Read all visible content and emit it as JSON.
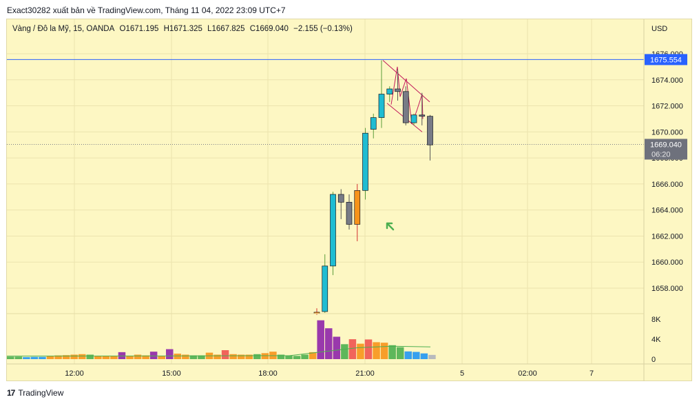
{
  "header": {
    "publish_line": "Exact30282 xuất bản về TradingView.com, Tháng 11 04, 2022 23:09 UTC+7"
  },
  "legend": {
    "symbol": "Vàng / Đô la Mỹ, 15, OANDA",
    "open": "O1671.195",
    "high": "H1671.325",
    "low": "L1667.825",
    "close": "C1669.040",
    "change": "−2.155 (−0.13%)"
  },
  "price_axis": {
    "currency": "USD",
    "ticks": [
      "1676.000",
      "1674.000",
      "1672.000",
      "1670.000",
      "1668.000",
      "1666.000",
      "1664.000",
      "1662.000",
      "1660.000",
      "1658.000"
    ]
  },
  "labels": {
    "horizontal_line_price": "1675.554",
    "last_price": "1669.040",
    "countdown": "06:20"
  },
  "volume_axis": {
    "ticks": [
      "8K",
      "4K",
      "0"
    ]
  },
  "time_axis": {
    "ticks": [
      "12:00",
      "15:00",
      "18:00",
      "21:00",
      "5",
      "02:00",
      "7"
    ]
  },
  "footer": {
    "brand": "TradingView",
    "logo_text": "17"
  },
  "colors": {
    "background": "#fdf7c3",
    "up_candle": "#1fbcd2",
    "down_candle": "#787b86",
    "orange_candle": "#f7931a",
    "horizontal_line": "#2962ff",
    "trendline": "#c2185b",
    "arrow": "#4caf50"
  },
  "chart_data": {
    "type": "candlestick",
    "symbol": "Vàng / Đô la Mỹ, 15, OANDA",
    "ylim": [
      1656.8,
      1677
    ],
    "horizontal_line": 1675.554,
    "last_price": 1669.04,
    "x_labels": [
      "12:00",
      "15:00",
      "18:00",
      "21:00",
      "5",
      "02:00",
      "7"
    ],
    "candles": [
      {
        "time": "19:30",
        "o": 1656.05,
        "h": 1656.45,
        "l": 1655.95,
        "c": 1656.15,
        "color": "orange"
      },
      {
        "time": "19:45",
        "o": 1656.2,
        "h": 1660.6,
        "l": 1656.1,
        "c": 1659.7,
        "color": "up"
      },
      {
        "time": "20:00",
        "o": 1659.7,
        "h": 1665.4,
        "l": 1659.0,
        "c": 1665.2,
        "color": "up"
      },
      {
        "time": "20:15",
        "o": 1665.2,
        "h": 1665.6,
        "l": 1663.3,
        "c": 1664.6,
        "color": "down"
      },
      {
        "time": "20:30",
        "o": 1664.6,
        "h": 1665.2,
        "l": 1662.5,
        "c": 1662.9,
        "color": "down"
      },
      {
        "time": "20:45",
        "o": 1662.9,
        "h": 1666.0,
        "l": 1661.6,
        "c": 1665.5,
        "color": "orange"
      },
      {
        "time": "21:00",
        "o": 1665.5,
        "h": 1670.3,
        "l": 1664.8,
        "c": 1669.9,
        "color": "up"
      },
      {
        "time": "21:15",
        "o": 1670.2,
        "h": 1671.4,
        "l": 1669.5,
        "c": 1671.1,
        "color": "up"
      },
      {
        "time": "21:30",
        "o": 1671.1,
        "h": 1675.5,
        "l": 1670.3,
        "c": 1672.9,
        "color": "up"
      },
      {
        "time": "21:45",
        "o": 1672.9,
        "h": 1673.5,
        "l": 1672.3,
        "c": 1673.3,
        "color": "up"
      },
      {
        "time": "22:00",
        "o": 1673.3,
        "h": 1674.8,
        "l": 1672.4,
        "c": 1673.1,
        "color": "down"
      },
      {
        "time": "22:15",
        "o": 1673.1,
        "h": 1673.5,
        "l": 1670.5,
        "c": 1670.7,
        "color": "down"
      },
      {
        "time": "22:30",
        "o": 1670.7,
        "h": 1671.4,
        "l": 1670.5,
        "c": 1671.3,
        "color": "up"
      },
      {
        "time": "22:45",
        "o": 1671.3,
        "h": 1673.0,
        "l": 1670.5,
        "c": 1671.2,
        "color": "down"
      },
      {
        "time": "23:00",
        "o": 1671.2,
        "h": 1671.3,
        "l": 1667.8,
        "c": 1669.0,
        "color": "down"
      }
    ],
    "volume": {
      "ylim": [
        0,
        9000
      ],
      "bars": [
        {
          "v": 500,
          "color": "green"
        },
        {
          "v": 500,
          "color": "green"
        },
        {
          "v": 400,
          "color": "blue"
        },
        {
          "v": 450,
          "color": "blue"
        },
        {
          "v": 450,
          "color": "blue"
        },
        {
          "v": 650,
          "color": "orange"
        },
        {
          "v": 750,
          "color": "orange"
        },
        {
          "v": 800,
          "color": "orange"
        },
        {
          "v": 900,
          "color": "orange"
        },
        {
          "v": 1000,
          "color": "orange"
        },
        {
          "v": 900,
          "color": "green"
        },
        {
          "v": 650,
          "color": "orange"
        },
        {
          "v": 650,
          "color": "orange"
        },
        {
          "v": 650,
          "color": "orange"
        },
        {
          "v": 1400,
          "color": "purple"
        },
        {
          "v": 650,
          "color": "orange"
        },
        {
          "v": 900,
          "color": "orange"
        },
        {
          "v": 750,
          "color": "orange"
        },
        {
          "v": 1500,
          "color": "purple"
        },
        {
          "v": 650,
          "color": "orange"
        },
        {
          "v": 2000,
          "color": "purple"
        },
        {
          "v": 1100,
          "color": "orange"
        },
        {
          "v": 900,
          "color": "orange"
        },
        {
          "v": 750,
          "color": "green"
        },
        {
          "v": 750,
          "color": "green"
        },
        {
          "v": 1300,
          "color": "orange"
        },
        {
          "v": 900,
          "color": "orange"
        },
        {
          "v": 1800,
          "color": "red"
        },
        {
          "v": 1000,
          "color": "orange"
        },
        {
          "v": 900,
          "color": "orange"
        },
        {
          "v": 900,
          "color": "orange"
        },
        {
          "v": 1000,
          "color": "green"
        },
        {
          "v": 1200,
          "color": "orange"
        },
        {
          "v": 1500,
          "color": "orange"
        },
        {
          "v": 900,
          "color": "green"
        },
        {
          "v": 750,
          "color": "green"
        },
        {
          "v": 650,
          "color": "green"
        },
        {
          "v": 900,
          "color": "green"
        },
        {
          "v": 1400,
          "color": "orange"
        },
        {
          "v": 7800,
          "color": "purple"
        },
        {
          "v": 6200,
          "color": "purple"
        },
        {
          "v": 4500,
          "color": "purple"
        },
        {
          "v": 3000,
          "color": "green"
        },
        {
          "v": 4000,
          "color": "red"
        },
        {
          "v": 3100,
          "color": "orange"
        },
        {
          "v": 3950,
          "color": "red"
        },
        {
          "v": 3400,
          "color": "orange"
        },
        {
          "v": 3300,
          "color": "orange"
        },
        {
          "v": 2800,
          "color": "green"
        },
        {
          "v": 2400,
          "color": "green"
        },
        {
          "v": 1550,
          "color": "blue"
        },
        {
          "v": 1450,
          "color": "blue"
        },
        {
          "v": 1150,
          "color": "blue"
        },
        {
          "v": 850,
          "color": "gray"
        }
      ]
    }
  }
}
